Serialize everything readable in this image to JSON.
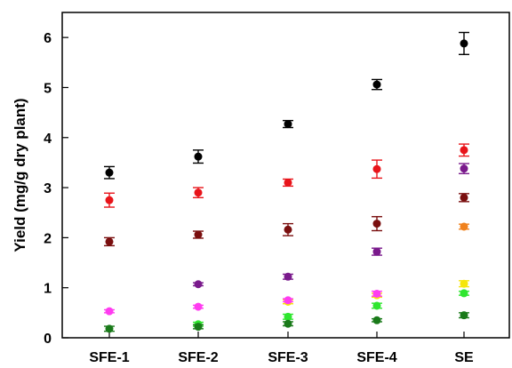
{
  "chart_data": {
    "type": "scatter",
    "title": "",
    "xlabel": "",
    "ylabel": "Yield (mg/g dry plant)",
    "categories": [
      "SFE-1",
      "SFE-2",
      "SFE-3",
      "SFE-4",
      "SE"
    ],
    "ylim": [
      0,
      6.5
    ],
    "yticks": [
      0,
      1,
      2,
      3,
      4,
      5,
      6
    ],
    "grid": false,
    "legend": "none",
    "series": [
      {
        "color": "#000000",
        "values": [
          3.3,
          3.62,
          4.27,
          5.06,
          5.88
        ],
        "errors": [
          0.12,
          0.13,
          0.07,
          0.1,
          0.22
        ]
      },
      {
        "color": "#e8141a",
        "values": [
          2.75,
          2.9,
          3.1,
          3.37,
          3.75
        ],
        "errors": [
          0.14,
          0.1,
          0.07,
          0.18,
          0.12
        ]
      },
      {
        "color": "#7a0f0f",
        "values": [
          1.92,
          2.06,
          2.16,
          2.28,
          2.8
        ],
        "errors": [
          0.08,
          0.07,
          0.12,
          0.14,
          0.08
        ]
      },
      {
        "color": "#7a1a8c",
        "values": [
          null,
          1.07,
          1.22,
          1.72,
          3.38
        ],
        "errors": [
          0,
          0.03,
          0.05,
          0.07,
          0.1
        ]
      },
      {
        "color": "#f0821e",
        "values": [
          null,
          null,
          null,
          null,
          2.22
        ],
        "errors": [
          0,
          0,
          0,
          0,
          0.05
        ]
      },
      {
        "color": "#f5e60a",
        "values": [
          null,
          null,
          0.72,
          0.85,
          1.08
        ],
        "errors": [
          0,
          0,
          0.04,
          0.04,
          0.06
        ]
      },
      {
        "color": "#ff3cf0",
        "values": [
          0.53,
          0.62,
          0.75,
          0.88,
          null
        ],
        "errors": [
          0.03,
          0.03,
          0.03,
          0.05,
          0
        ]
      },
      {
        "color": "#2fe62f",
        "values": [
          null,
          0.27,
          0.42,
          0.64,
          0.89
        ],
        "errors": [
          0,
          0.04,
          0.05,
          0.05,
          0.04
        ]
      },
      {
        "color": "#1a7a1a",
        "values": [
          0.18,
          0.22,
          0.28,
          0.35,
          0.45
        ],
        "errors": [
          0.05,
          0.04,
          0.04,
          0.03,
          0.05
        ]
      }
    ]
  }
}
